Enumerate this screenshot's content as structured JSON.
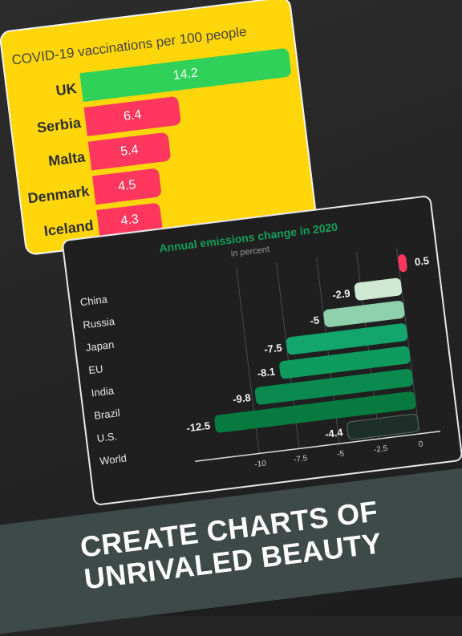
{
  "headline": {
    "line1": "CREATE CHARTS OF",
    "line2": "UNRIVALED BEAUTY"
  },
  "colors": {
    "vacc_top": "#30d158",
    "vacc_other": "#ff375f",
    "card1_bg": "#ffd60a",
    "emis_positive": "#ff375f",
    "emis_title": "#15a05a"
  },
  "chart_data": [
    {
      "type": "bar",
      "orientation": "horizontal",
      "title": "COVID-19 vaccinations per 100 people",
      "categories": [
        "UK",
        "Serbia",
        "Malta",
        "Denmark",
        "Iceland"
      ],
      "values": [
        14.2,
        6.4,
        5.4,
        4.5,
        4.3
      ],
      "value_labels": [
        "14.2",
        "6.4",
        "5.4",
        "4.5",
        "4.3"
      ],
      "xlim": [
        0,
        14.2
      ]
    },
    {
      "type": "bar",
      "orientation": "horizontal",
      "title": "Annual emissions change in 2020",
      "subtitle": "in percent",
      "categories": [
        "China",
        "Russia",
        "Japan",
        "EU",
        "India",
        "Brazil",
        "U.S.",
        "World"
      ],
      "values": [
        0.5,
        -2.9,
        -5,
        -7.5,
        -8.1,
        -9.8,
        -12.5,
        -4.4
      ],
      "value_labels": [
        "0.5",
        "-2.9",
        "-5",
        "-7.5",
        "-8.1",
        "-9.8",
        "-12.5",
        "-4.4"
      ],
      "xticks": [
        "-10",
        "-7.5",
        "-5",
        "-2.5",
        "0"
      ],
      "xlim": [
        -13.5,
        1
      ],
      "grid": true
    }
  ]
}
